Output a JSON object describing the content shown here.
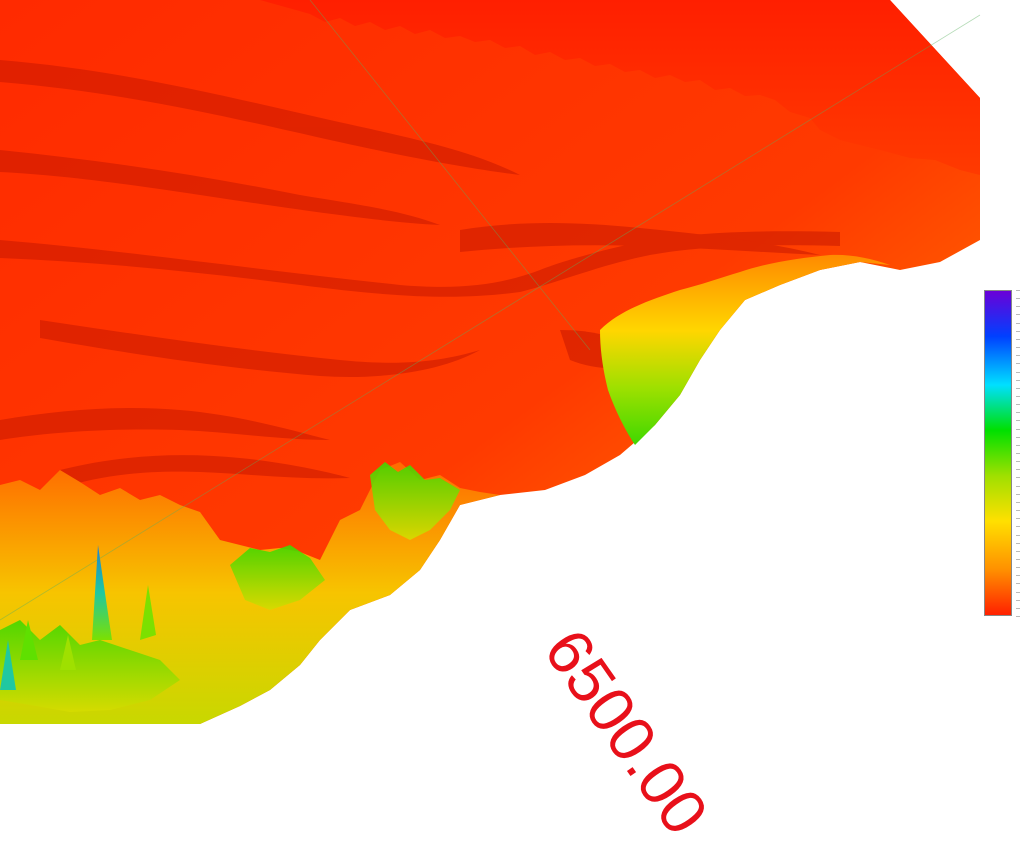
{
  "viewer": {
    "depth_label": "6500.00"
  },
  "colors": {
    "background": "#ffffff",
    "surface_primary": "#ff2a00",
    "surface_shadow": "#c01a00",
    "surface_mid": "#ff7a00",
    "surface_yellow": "#ffe200",
    "surface_green": "#5fe000",
    "surface_cyan": "#00c8e0",
    "label_color": "#e8101a"
  },
  "colorbar": {
    "stops": [
      "#6a00d8",
      "#0040ff",
      "#00e0ff",
      "#00e000",
      "#9fe000",
      "#ffe000",
      "#ff9000",
      "#ff2000"
    ]
  }
}
